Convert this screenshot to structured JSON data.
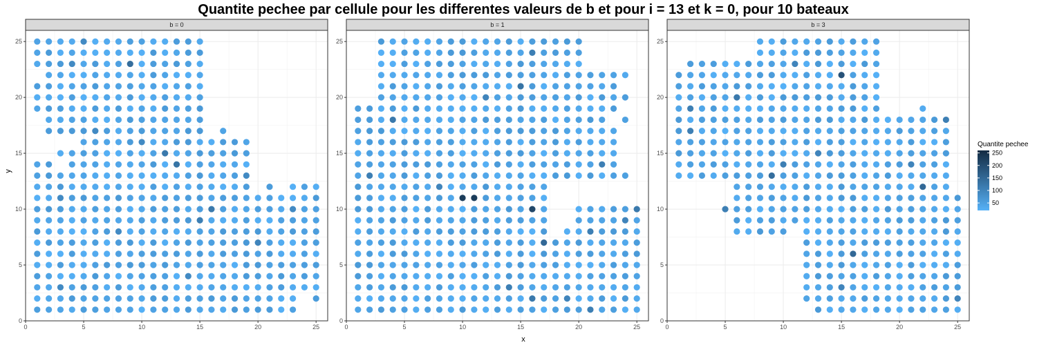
{
  "chart_data": {
    "type": "scatter",
    "title": "Quantite pechee par cellule pour les differentes valeurs de b et pour i = 13 et k = 0, pour 10 bateaux",
    "xlabel": "x",
    "ylabel": "y",
    "xlim": [
      0,
      26
    ],
    "ylim": [
      0,
      26
    ],
    "x_ticks": [
      0,
      5,
      10,
      15,
      20,
      25
    ],
    "y_ticks": [
      0,
      5,
      10,
      15,
      20,
      25
    ],
    "grid": true,
    "legend": {
      "title": "Quantite pechee",
      "position": "right",
      "breaks": [
        50,
        100,
        150,
        200,
        250
      ],
      "range": [
        20,
        260
      ],
      "low_color": "#56B1F7",
      "high_color": "#132B43"
    },
    "panels": [
      {
        "strip": "b = 0",
        "rows": [
          {
            "y": 25,
            "xs": [
              [
                1,
                15
              ]
            ]
          },
          {
            "y": 24,
            "xs": [
              [
                1,
                15
              ]
            ]
          },
          {
            "y": 23,
            "xs": [
              [
                1,
                15
              ]
            ]
          },
          {
            "y": 22,
            "xs": [
              [
                2,
                15
              ]
            ]
          },
          {
            "y": 21,
            "xs": [
              [
                1,
                15
              ]
            ]
          },
          {
            "y": 20,
            "xs": [
              [
                1,
                15
              ]
            ]
          },
          {
            "y": 19,
            "xs": [
              [
                1,
                15
              ]
            ]
          },
          {
            "y": 18,
            "xs": [
              [
                2,
                15
              ]
            ]
          },
          {
            "y": 17,
            "xs": [
              [
                2,
                15
              ],
              [
                17,
                17
              ]
            ]
          },
          {
            "y": 16,
            "xs": [
              [
                5,
                19
              ]
            ]
          },
          {
            "y": 15,
            "xs": [
              [
                3,
                19
              ]
            ]
          },
          {
            "y": 14,
            "xs": [
              [
                1,
                2
              ],
              [
                4,
                19
              ]
            ]
          },
          {
            "y": 13,
            "xs": [
              [
                1,
                19
              ]
            ]
          },
          {
            "y": 12,
            "xs": [
              [
                1,
                19
              ],
              [
                21,
                21
              ],
              [
                23,
                25
              ]
            ]
          },
          {
            "y": 11,
            "xs": [
              [
                1,
                25
              ]
            ]
          },
          {
            "y": 10,
            "xs": [
              [
                1,
                25
              ]
            ]
          },
          {
            "y": 9,
            "xs": [
              [
                1,
                25
              ]
            ]
          },
          {
            "y": 8,
            "xs": [
              [
                1,
                25
              ]
            ]
          },
          {
            "y": 7,
            "xs": [
              [
                1,
                25
              ]
            ]
          },
          {
            "y": 6,
            "xs": [
              [
                1,
                25
              ]
            ]
          },
          {
            "y": 5,
            "xs": [
              [
                1,
                25
              ]
            ]
          },
          {
            "y": 4,
            "xs": [
              [
                1,
                25
              ]
            ]
          },
          {
            "y": 3,
            "xs": [
              [
                1,
                25
              ]
            ]
          },
          {
            "y": 2,
            "xs": [
              [
                1,
                23
              ],
              [
                25,
                25
              ]
            ]
          },
          {
            "y": 1,
            "xs": [
              [
                1,
                23
              ]
            ]
          }
        ],
        "highlights": [
          {
            "x": 9,
            "y": 23,
            "v": 140
          },
          {
            "x": 4,
            "y": 23,
            "v": 90
          },
          {
            "x": 5,
            "y": 25,
            "v": 90
          },
          {
            "x": 12,
            "y": 15,
            "v": 120
          },
          {
            "x": 13,
            "y": 14,
            "v": 130
          },
          {
            "x": 16,
            "y": 10,
            "v": 120
          },
          {
            "x": 15,
            "y": 9,
            "v": 110
          },
          {
            "x": 10,
            "y": 16,
            "v": 90
          },
          {
            "x": 6,
            "y": 17,
            "v": 90
          },
          {
            "x": 3,
            "y": 11,
            "v": 90
          },
          {
            "x": 19,
            "y": 13,
            "v": 90
          },
          {
            "x": 20,
            "y": 7,
            "v": 100
          },
          {
            "x": 14,
            "y": 4,
            "v": 90
          },
          {
            "x": 8,
            "y": 8,
            "v": 90
          },
          {
            "x": 23,
            "y": 10,
            "v": 90
          },
          {
            "x": 3,
            "y": 3,
            "v": 90
          }
        ]
      },
      {
        "strip": "b = 1",
        "rows": [
          {
            "y": 25,
            "xs": [
              [
                3,
                20
              ]
            ]
          },
          {
            "y": 24,
            "xs": [
              [
                3,
                20
              ]
            ]
          },
          {
            "y": 23,
            "xs": [
              [
                3,
                20
              ]
            ]
          },
          {
            "y": 22,
            "xs": [
              [
                3,
                21
              ],
              [
                22,
                22
              ],
              [
                23,
                23
              ],
              [
                24,
                24
              ]
            ]
          },
          {
            "y": 21,
            "xs": [
              [
                3,
                23
              ]
            ]
          },
          {
            "y": 20,
            "xs": [
              [
                3,
                24
              ]
            ]
          },
          {
            "y": 19,
            "xs": [
              [
                1,
                23
              ]
            ]
          },
          {
            "y": 18,
            "xs": [
              [
                1,
                22
              ],
              [
                24,
                24
              ]
            ]
          },
          {
            "y": 17,
            "xs": [
              [
                1,
                23
              ]
            ]
          },
          {
            "y": 16,
            "xs": [
              [
                1,
                23
              ]
            ]
          },
          {
            "y": 15,
            "xs": [
              [
                1,
                23
              ]
            ]
          },
          {
            "y": 14,
            "xs": [
              [
                1,
                23
              ]
            ]
          },
          {
            "y": 13,
            "xs": [
              [
                1,
                24
              ]
            ]
          },
          {
            "y": 12,
            "xs": [
              [
                1,
                17
              ]
            ]
          },
          {
            "y": 11,
            "xs": [
              [
                1,
                17
              ]
            ]
          },
          {
            "y": 10,
            "xs": [
              [
                1,
                17
              ],
              [
                20,
                25
              ]
            ]
          },
          {
            "y": 9,
            "xs": [
              [
                1,
                17
              ],
              [
                20,
                25
              ]
            ]
          },
          {
            "y": 8,
            "xs": [
              [
                1,
                17
              ],
              [
                19,
                25
              ]
            ]
          },
          {
            "y": 7,
            "xs": [
              [
                1,
                25
              ]
            ]
          },
          {
            "y": 6,
            "xs": [
              [
                1,
                25
              ]
            ]
          },
          {
            "y": 5,
            "xs": [
              [
                1,
                25
              ]
            ]
          },
          {
            "y": 4,
            "xs": [
              [
                1,
                25
              ]
            ]
          },
          {
            "y": 3,
            "xs": [
              [
                1,
                25
              ]
            ]
          },
          {
            "y": 2,
            "xs": [
              [
                1,
                25
              ]
            ]
          },
          {
            "y": 1,
            "xs": [
              [
                1,
                25
              ]
            ]
          }
        ],
        "highlights": [
          {
            "x": 10,
            "y": 11,
            "v": 230
          },
          {
            "x": 11,
            "y": 11,
            "v": 230
          },
          {
            "x": 16,
            "y": 10,
            "v": 210
          },
          {
            "x": 17,
            "y": 7,
            "v": 150
          },
          {
            "x": 15,
            "y": 21,
            "v": 130
          },
          {
            "x": 16,
            "y": 24,
            "v": 110
          },
          {
            "x": 4,
            "y": 18,
            "v": 120
          },
          {
            "x": 2,
            "y": 13,
            "v": 110
          },
          {
            "x": 22,
            "y": 14,
            "v": 110
          },
          {
            "x": 21,
            "y": 8,
            "v": 110
          },
          {
            "x": 25,
            "y": 10,
            "v": 120
          },
          {
            "x": 24,
            "y": 9,
            "v": 100
          },
          {
            "x": 14,
            "y": 3,
            "v": 110
          },
          {
            "x": 19,
            "y": 2,
            "v": 100
          },
          {
            "x": 16,
            "y": 2,
            "v": 120
          },
          {
            "x": 21,
            "y": 1,
            "v": 110
          },
          {
            "x": 12,
            "y": 20,
            "v": 100
          },
          {
            "x": 8,
            "y": 12,
            "v": 100
          }
        ]
      },
      {
        "strip": "b = 3",
        "rows": [
          {
            "y": 25,
            "xs": [
              [
                8,
                18
              ]
            ]
          },
          {
            "y": 24,
            "xs": [
              [
                8,
                18
              ]
            ]
          },
          {
            "y": 23,
            "xs": [
              [
                2,
                18
              ]
            ]
          },
          {
            "y": 22,
            "xs": [
              [
                1,
                18
              ]
            ]
          },
          {
            "y": 21,
            "xs": [
              [
                1,
                18
              ]
            ]
          },
          {
            "y": 20,
            "xs": [
              [
                1,
                18
              ]
            ]
          },
          {
            "y": 19,
            "xs": [
              [
                1,
                18
              ],
              [
                22,
                22
              ]
            ]
          },
          {
            "y": 18,
            "xs": [
              [
                1,
                24
              ]
            ]
          },
          {
            "y": 17,
            "xs": [
              [
                1,
                24
              ]
            ]
          },
          {
            "y": 16,
            "xs": [
              [
                1,
                24
              ]
            ]
          },
          {
            "y": 15,
            "xs": [
              [
                1,
                24
              ]
            ]
          },
          {
            "y": 14,
            "xs": [
              [
                1,
                24
              ]
            ]
          },
          {
            "y": 13,
            "xs": [
              [
                1,
                24
              ]
            ]
          },
          {
            "y": 12,
            "xs": [
              [
                6,
                24
              ]
            ]
          },
          {
            "y": 11,
            "xs": [
              [
                6,
                25
              ]
            ]
          },
          {
            "y": 10,
            "xs": [
              [
                5,
                25
              ]
            ]
          },
          {
            "y": 9,
            "xs": [
              [
                6,
                25
              ]
            ]
          },
          {
            "y": 8,
            "xs": [
              [
                6,
                10
              ],
              [
                12,
                25
              ]
            ]
          },
          {
            "y": 7,
            "xs": [
              [
                12,
                25
              ]
            ]
          },
          {
            "y": 6,
            "xs": [
              [
                12,
                25
              ]
            ]
          },
          {
            "y": 5,
            "xs": [
              [
                12,
                25
              ]
            ]
          },
          {
            "y": 4,
            "xs": [
              [
                12,
                25
              ]
            ]
          },
          {
            "y": 3,
            "xs": [
              [
                12,
                25
              ]
            ]
          },
          {
            "y": 2,
            "xs": [
              [
                12,
                25
              ]
            ]
          },
          {
            "y": 1,
            "xs": [
              [
                13,
                25
              ]
            ]
          }
        ],
        "highlights": [
          {
            "x": 15,
            "y": 22,
            "v": 190
          },
          {
            "x": 16,
            "y": 6,
            "v": 150
          },
          {
            "x": 22,
            "y": 12,
            "v": 150
          },
          {
            "x": 9,
            "y": 13,
            "v": 140
          },
          {
            "x": 6,
            "y": 20,
            "v": 120
          },
          {
            "x": 2,
            "y": 19,
            "v": 110
          },
          {
            "x": 2,
            "y": 17,
            "v": 110
          },
          {
            "x": 10,
            "y": 14,
            "v": 110
          },
          {
            "x": 24,
            "y": 18,
            "v": 110
          },
          {
            "x": 21,
            "y": 14,
            "v": 100
          },
          {
            "x": 5,
            "y": 10,
            "v": 110
          },
          {
            "x": 15,
            "y": 3,
            "v": 100
          },
          {
            "x": 25,
            "y": 2,
            "v": 100
          },
          {
            "x": 11,
            "y": 23,
            "v": 100
          },
          {
            "x": 13,
            "y": 15,
            "v": 100
          },
          {
            "x": 19,
            "y": 19,
            "v": 90
          }
        ]
      }
    ]
  }
}
